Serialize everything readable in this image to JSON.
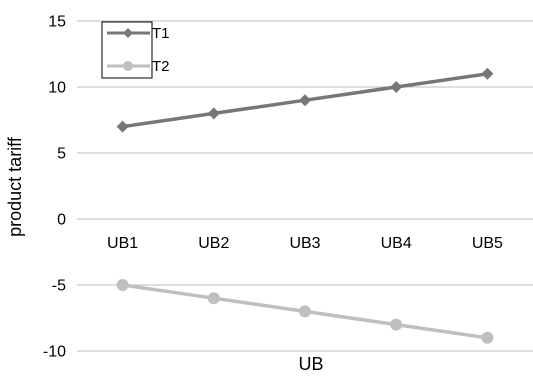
{
  "chart_data": {
    "type": "line",
    "categories": [
      "UB1",
      "UB2",
      "UB3",
      "UB4",
      "UB5"
    ],
    "series": [
      {
        "name": "T1",
        "values": [
          7,
          8,
          9,
          10,
          11
        ],
        "color": "#777777",
        "marker": "diamond"
      },
      {
        "name": "T2",
        "values": [
          -5,
          -6,
          -7,
          -8,
          -9
        ],
        "color": "#bfbfbf",
        "marker": "circle"
      }
    ],
    "title": "",
    "xlabel": "UB",
    "ylabel": "product tariff",
    "ylim": [
      -10,
      15
    ],
    "yticks": [
      15,
      10,
      5,
      0,
      -5,
      -10
    ],
    "grid": true,
    "legend": "top-left"
  }
}
